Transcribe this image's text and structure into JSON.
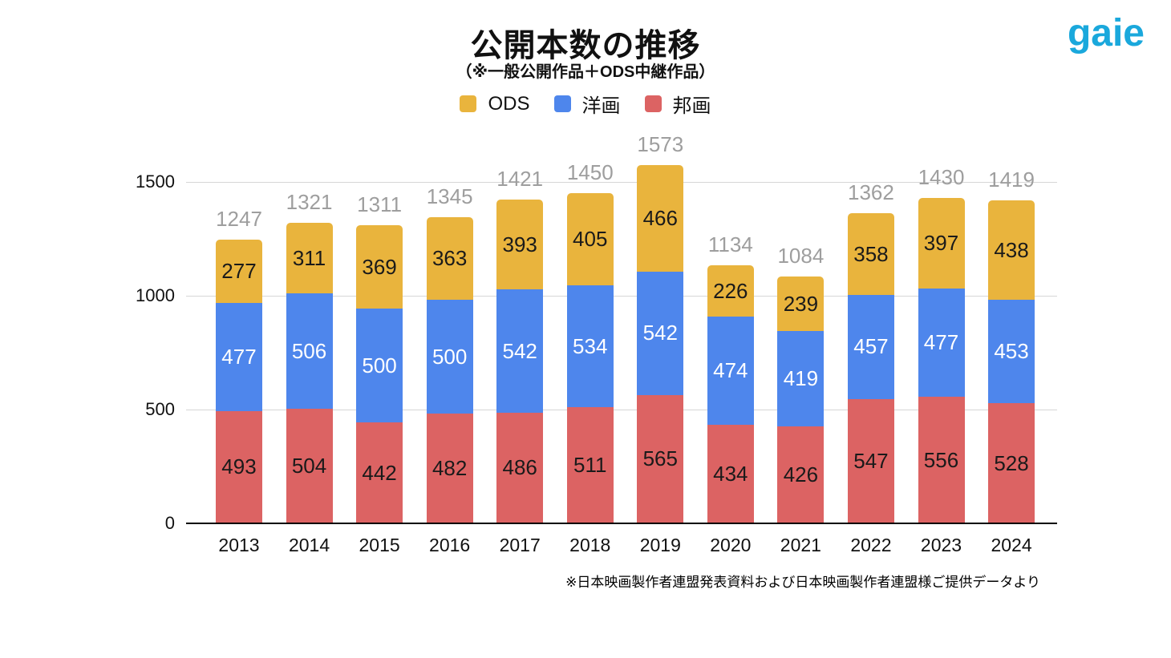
{
  "header": {
    "title": "公開本数の推移",
    "subtitle": "（※一般公開作品＋ODS中継作品）",
    "logo_text": "gaie",
    "logo_color": "#1AA8DC"
  },
  "legend": [
    {
      "label": "ODS",
      "color": "#E9B43D"
    },
    {
      "label": "洋画",
      "color": "#4E86EC"
    },
    {
      "label": "邦画",
      "color": "#DC6363"
    }
  ],
  "source_note": "※日本映画製作者連盟発表資料および日本映画製作者連盟様ご提供データより",
  "chart_data": {
    "type": "bar",
    "stacked": true,
    "title": "公開本数の推移",
    "subtitle": "（※一般公開作品＋ODS中継作品）",
    "legend_position": "top",
    "grid": true,
    "ylim": [
      0,
      1500
    ],
    "y_ticks": [
      0,
      500,
      1000,
      1500
    ],
    "categories": [
      "2013",
      "2014",
      "2015",
      "2016",
      "2017",
      "2018",
      "2019",
      "2020",
      "2021",
      "2022",
      "2023",
      "2024"
    ],
    "series": [
      {
        "id": "houga",
        "name": "邦画",
        "color": "#DC6363",
        "label_color": "#1a1a1a",
        "values": [
          493,
          504,
          442,
          482,
          486,
          511,
          565,
          434,
          426,
          547,
          556,
          528
        ]
      },
      {
        "id": "youga",
        "name": "洋画",
        "color": "#4E86EC",
        "label_color": "#ffffff",
        "values": [
          477,
          506,
          500,
          500,
          542,
          534,
          542,
          474,
          419,
          457,
          477,
          453
        ]
      },
      {
        "id": "ods",
        "name": "ODS",
        "color": "#E9B43D",
        "label_color": "#1a1a1a",
        "values": [
          277,
          311,
          369,
          363,
          393,
          405,
          466,
          226,
          239,
          358,
          397,
          438
        ]
      }
    ],
    "totals": [
      1247,
      1321,
      1311,
      1345,
      1421,
      1450,
      1573,
      1134,
      1084,
      1362,
      1430,
      1419
    ],
    "total_label_color": "#9E9E9E",
    "colors": {
      "gridline": "#D6D6D6",
      "baseline": "#000000"
    }
  }
}
